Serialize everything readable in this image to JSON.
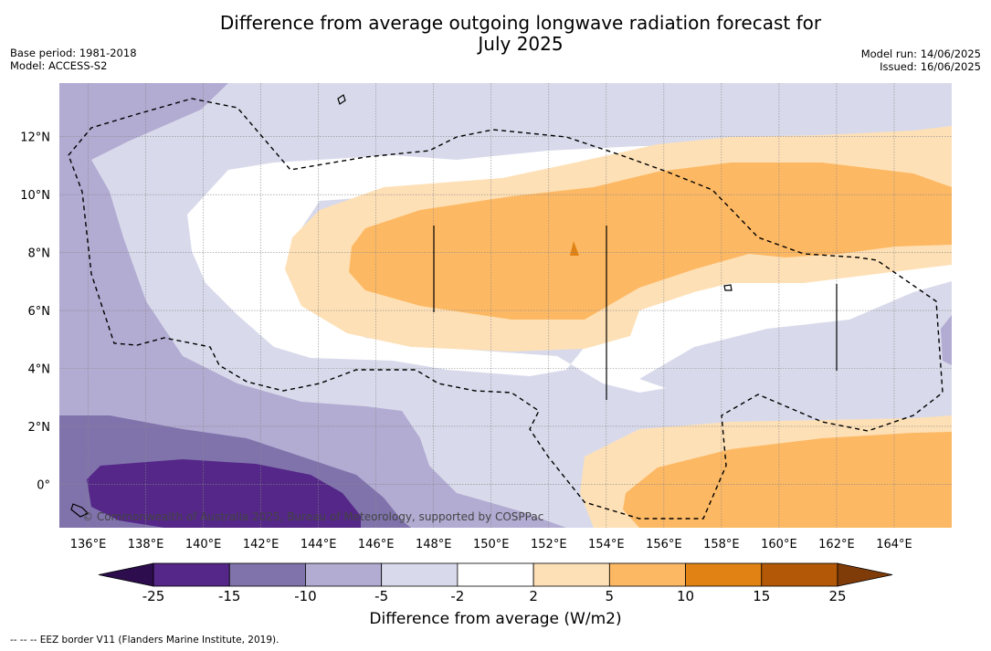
{
  "title_line1": "Difference from average outgoing longwave radiation forecast for",
  "title_line2": "July 2025",
  "base_period": "Base period: 1981-2018",
  "model": "Model: ACCESS-S2",
  "model_run": "Model run: 14/06/2025",
  "issued": "Issued: 16/06/2025",
  "copyright": "© Commonwealth of Australia 2025, Bureau of Meteorology, supported by COSPPac",
  "colorbar_title": "Difference from average (W/m2)",
  "colorbar_ticks": [
    "-25",
    "-15",
    "-10",
    "-5",
    "-2",
    "2",
    "5",
    "10",
    "15",
    "25"
  ],
  "colorbar_colors": [
    "#2d0d4d",
    "#542788",
    "#8073ac",
    "#b2abd2",
    "#d8daeb",
    "#ffffff",
    "#fee0b6",
    "#fdb863",
    "#e08214",
    "#b35806",
    "#7f3b08"
  ],
  "footnote": "--  --  -- EEZ border V11 (Flanders Marine Institute, 2019).",
  "x_ticks": [
    "136°E",
    "138°E",
    "140°E",
    "142°E",
    "144°E",
    "146°E",
    "148°E",
    "150°E",
    "152°E",
    "154°E",
    "156°E",
    "158°E",
    "160°E",
    "162°E",
    "164°E"
  ],
  "y_ticks": [
    "12°N",
    "10°N",
    "8°N",
    "6°N",
    "4°N",
    "2°N",
    "0°"
  ]
}
